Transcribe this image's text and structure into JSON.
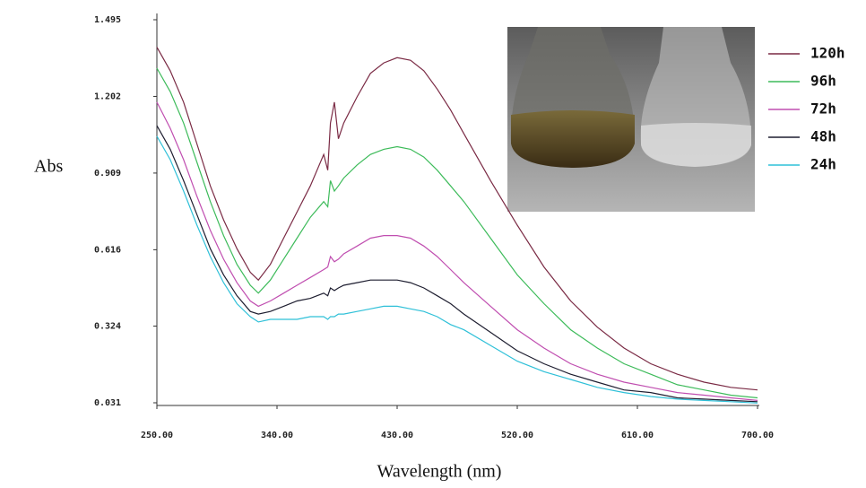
{
  "chart_data": {
    "type": "line",
    "xlabel": "Wavelength (nm)",
    "ylabel": "Abs",
    "x": [
      250,
      260,
      270,
      280,
      290,
      300,
      310,
      320,
      326,
      335,
      345,
      355,
      365,
      375,
      378,
      380,
      383,
      386,
      390,
      400,
      410,
      420,
      430,
      440,
      450,
      460,
      470,
      480,
      500,
      520,
      540,
      560,
      580,
      600,
      620,
      640,
      660,
      680,
      700
    ],
    "series": [
      {
        "name": "120h",
        "color": "#7a2a44",
        "values": [
          1.39,
          1.3,
          1.18,
          1.02,
          0.86,
          0.73,
          0.62,
          0.53,
          0.5,
          0.56,
          0.66,
          0.76,
          0.86,
          0.98,
          0.92,
          1.1,
          1.18,
          1.04,
          1.1,
          1.2,
          1.29,
          1.33,
          1.35,
          1.34,
          1.3,
          1.23,
          1.15,
          1.06,
          0.88,
          0.71,
          0.55,
          0.42,
          0.32,
          0.24,
          0.18,
          0.14,
          0.11,
          0.09,
          0.08
        ]
      },
      {
        "name": "96h",
        "color": "#3dbb5a",
        "values": [
          1.31,
          1.22,
          1.1,
          0.95,
          0.8,
          0.67,
          0.56,
          0.48,
          0.45,
          0.5,
          0.58,
          0.66,
          0.74,
          0.8,
          0.78,
          0.88,
          0.84,
          0.86,
          0.89,
          0.94,
          0.98,
          1.0,
          1.01,
          1.0,
          0.97,
          0.92,
          0.86,
          0.8,
          0.66,
          0.52,
          0.41,
          0.31,
          0.24,
          0.18,
          0.14,
          0.1,
          0.08,
          0.06,
          0.05
        ]
      },
      {
        "name": "72h",
        "color": "#c04eb0",
        "values": [
          1.18,
          1.08,
          0.96,
          0.82,
          0.69,
          0.58,
          0.49,
          0.42,
          0.4,
          0.42,
          0.45,
          0.48,
          0.51,
          0.54,
          0.55,
          0.59,
          0.57,
          0.58,
          0.6,
          0.63,
          0.66,
          0.67,
          0.67,
          0.66,
          0.63,
          0.59,
          0.54,
          0.49,
          0.4,
          0.31,
          0.24,
          0.18,
          0.14,
          0.11,
          0.09,
          0.07,
          0.06,
          0.05,
          0.04
        ]
      },
      {
        "name": "48h",
        "color": "#1e1e30",
        "values": [
          1.09,
          1.0,
          0.88,
          0.75,
          0.62,
          0.52,
          0.44,
          0.38,
          0.37,
          0.38,
          0.4,
          0.42,
          0.43,
          0.45,
          0.44,
          0.47,
          0.46,
          0.47,
          0.48,
          0.49,
          0.5,
          0.5,
          0.5,
          0.49,
          0.47,
          0.44,
          0.41,
          0.37,
          0.3,
          0.23,
          0.18,
          0.14,
          0.11,
          0.08,
          0.07,
          0.05,
          0.045,
          0.04,
          0.035
        ]
      },
      {
        "name": "24h",
        "color": "#2fc0d8",
        "values": [
          1.05,
          0.96,
          0.84,
          0.71,
          0.59,
          0.49,
          0.41,
          0.36,
          0.34,
          0.35,
          0.35,
          0.35,
          0.36,
          0.36,
          0.35,
          0.36,
          0.36,
          0.37,
          0.37,
          0.38,
          0.39,
          0.4,
          0.4,
          0.39,
          0.38,
          0.36,
          0.33,
          0.31,
          0.25,
          0.19,
          0.15,
          0.12,
          0.09,
          0.07,
          0.055,
          0.045,
          0.04,
          0.035,
          0.03
        ]
      }
    ],
    "xlim": [
      250,
      700
    ],
    "xticks": [
      {
        "value": 250,
        "label": "250.00"
      },
      {
        "value": 340,
        "label": "340.00"
      },
      {
        "value": 430,
        "label": "430.00"
      },
      {
        "value": 520,
        "label": "520.00"
      },
      {
        "value": 610,
        "label": "610.00"
      },
      {
        "value": 700,
        "label": "700.00"
      }
    ],
    "ylim": [
      0.031,
      1.495
    ],
    "yticks": [
      0.031,
      0.324,
      0.616,
      0.909,
      1.202,
      1.495
    ],
    "legend": "right"
  }
}
